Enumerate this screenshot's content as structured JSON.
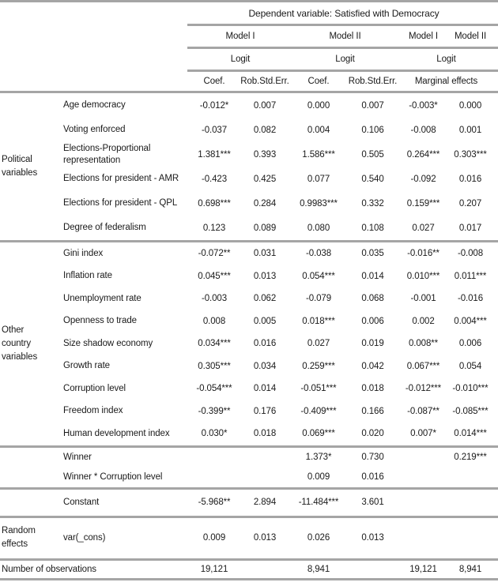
{
  "header": {
    "dependent_variable": "Dependent variable: Satisfied with Democracy",
    "model_1": "Model I",
    "model_2": "Model II",
    "marginal_model_1": "Model I",
    "marginal_model_2": "Model II",
    "method_1": "Logit",
    "method_2": "Logit",
    "method_3": "Logit",
    "coef_1": "Coef.",
    "se_1": "Rob.Std.Err.",
    "coef_2": "Coef.",
    "se_2": "Rob.Std.Err.",
    "marginal_effects": "Marginal effects"
  },
  "sections": [
    {
      "group": "Political variables",
      "rows": [
        {
          "label": "Age democracy",
          "values": [
            "-0.012*",
            "0.007",
            "0.000",
            "0.007",
            "-0.003*",
            "0.000"
          ]
        },
        {
          "label": "Voting enforced",
          "values": [
            "-0.037",
            "0.082",
            "0.004",
            "0.106",
            "-0.008",
            "0.001"
          ]
        },
        {
          "label": "Elections-Proportional representation",
          "values": [
            "1.381***",
            "0.393",
            "1.586***",
            "0.505",
            "0.264***",
            "0.303***"
          ]
        },
        {
          "label": "Elections for president - AMR",
          "values": [
            "-0.423",
            "0.425",
            "0.077",
            "0.540",
            "-0.092",
            "0.016"
          ]
        },
        {
          "label": "Elections for president - QPL",
          "values": [
            "0.698***",
            "0.284",
            "0.9983***",
            "0.332",
            "0.159***",
            "0.207"
          ]
        },
        {
          "label": "Degree of federalism",
          "values": [
            "0.123",
            "0.089",
            "0.080",
            "0.108",
            "0.027",
            "0.017"
          ]
        }
      ]
    },
    {
      "group": "Other country variables",
      "rows": [
        {
          "label": "Gini index",
          "values": [
            "-0.072**",
            "0.031",
            "-0.038",
            "0.035",
            "-0.016**",
            "-0.008"
          ]
        },
        {
          "label": "Inflation rate",
          "values": [
            "0.045***",
            "0.013",
            "0.054***",
            "0.014",
            "0.010***",
            "0.011***"
          ]
        },
        {
          "label": "Unemployment rate",
          "values": [
            "-0.003",
            "0.062",
            "-0.079",
            "0.068",
            "-0.001",
            "-0.016"
          ]
        },
        {
          "label": "Openness to trade",
          "values": [
            "0.008",
            "0.005",
            "0.018***",
            "0.006",
            "0.002",
            "0.004***"
          ]
        },
        {
          "label": "Size shadow economy",
          "values": [
            "0.034***",
            "0.016",
            "0.027",
            "0.019",
            "0.008**",
            "0.006"
          ]
        },
        {
          "label": "Growth rate",
          "values": [
            "0.305***",
            "0.034",
            "0.259***",
            "0.042",
            "0.067***",
            "0.054"
          ]
        },
        {
          "label": "Corruption level",
          "values": [
            "-0.054***",
            "0.014",
            "-0.051***",
            "0.018",
            "-0.012***",
            "-0.010***"
          ]
        },
        {
          "label": "Freedom index",
          "values": [
            "-0.399**",
            "0.176",
            "-0.409***",
            "0.166",
            "-0.087**",
            "-0.085***"
          ]
        },
        {
          "label": "Human development index",
          "values": [
            "0.030*",
            "0.018",
            "0.069***",
            "0.020",
            "0.007*",
            "0.014***"
          ]
        }
      ]
    },
    {
      "group": "",
      "rows": [
        {
          "label": "Winner",
          "values": [
            "",
            "",
            "1.373*",
            "0.730",
            "",
            "0.219***"
          ]
        },
        {
          "label": "Winner * Corruption level",
          "values": [
            "",
            "",
            "0.009",
            "0.016",
            "",
            ""
          ]
        }
      ]
    },
    {
      "group": "",
      "rows": [
        {
          "label": "Constant",
          "values": [
            "-5.968**",
            "2.894",
            "-11.484***",
            "3.601",
            "",
            ""
          ]
        }
      ]
    },
    {
      "group": "Random effects",
      "rows": [
        {
          "label": "var(_cons)",
          "values": [
            "0.009",
            "0.013",
            "0.026",
            "0.013",
            "",
            ""
          ]
        }
      ]
    }
  ],
  "footer": {
    "label": "Number of observations",
    "values": [
      "19,121",
      "",
      "8,941",
      "",
      "19,121",
      "8,941"
    ]
  },
  "colors": {
    "line_gray": "#a5a5a5",
    "text": "#1a1a1a"
  }
}
